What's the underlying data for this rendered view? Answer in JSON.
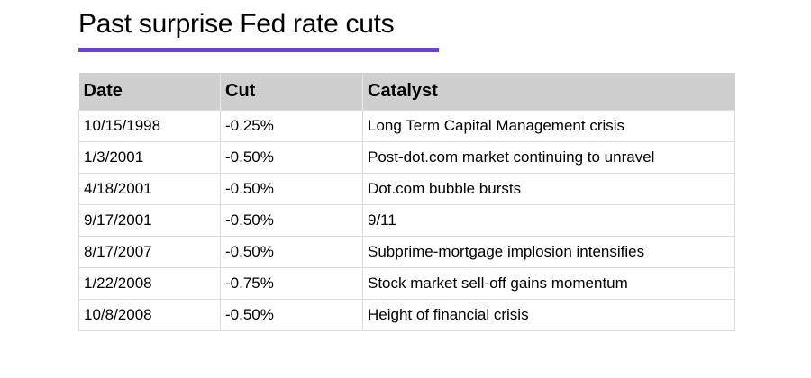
{
  "title": "Past surprise Fed rate cuts",
  "accent_color": "#6c3ce0",
  "table": {
    "headers": [
      "Date",
      "Cut",
      "Catalyst"
    ],
    "rows": [
      {
        "date": "10/15/1998",
        "cut": "-0.25%",
        "catalyst": "Long Term Capital Management crisis"
      },
      {
        "date": "1/3/2001",
        "cut": "-0.50%",
        "catalyst": "Post-dot.com market continuing to unravel"
      },
      {
        "date": "4/18/2001",
        "cut": "-0.50%",
        "catalyst": "Dot.com bubble bursts"
      },
      {
        "date": "9/17/2001",
        "cut": "-0.50%",
        "catalyst": "9/11"
      },
      {
        "date": "8/17/2007",
        "cut": "-0.50%",
        "catalyst": "Subprime-mortgage implosion intensifies"
      },
      {
        "date": "1/22/2008",
        "cut": "-0.75%",
        "catalyst": "Stock market sell-off gains momentum"
      },
      {
        "date": "10/8/2008",
        "cut": "-0.50%",
        "catalyst": "Height of financial crisis"
      }
    ]
  }
}
